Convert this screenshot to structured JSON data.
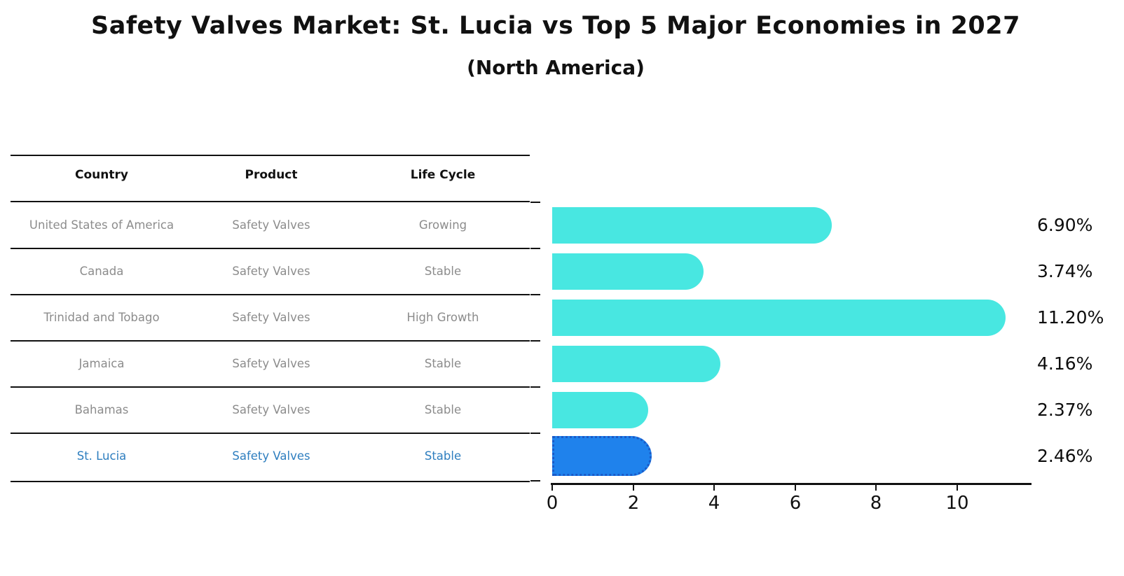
{
  "title": "Safety Valves Market: St. Lucia vs Top 5 Major Economies in 2027",
  "subtitle": "(North America)",
  "table": {
    "headers": [
      "Country",
      "Product",
      "Life Cycle"
    ],
    "rows": [
      {
        "country": "United States of America",
        "product": "Safety Valves",
        "life_cycle": "Growing"
      },
      {
        "country": "Canada",
        "product": "Safety Valves",
        "life_cycle": "Stable"
      },
      {
        "country": "Trinidad and Tobago",
        "product": "Safety Valves",
        "life_cycle": "High Growth"
      },
      {
        "country": "Jamaica",
        "product": "Safety Valves",
        "life_cycle": "Stable"
      },
      {
        "country": "Bahamas",
        "product": "Safety Valves",
        "life_cycle": "Stable"
      },
      {
        "country": "St. Lucia",
        "product": "Safety Valves",
        "life_cycle": "Stable"
      }
    ]
  },
  "chart_data": {
    "type": "bar",
    "orientation": "horizontal",
    "title": "Safety Valves Market: St. Lucia vs Top 5 Major Economies in 2027 (North America)",
    "categories": [
      "United States of America",
      "Canada",
      "Trinidad and Tobago",
      "Jamaica",
      "Bahamas",
      "St. Lucia"
    ],
    "values": [
      6.9,
      3.74,
      11.2,
      4.16,
      2.37,
      2.46
    ],
    "value_labels": [
      "6.90%",
      "3.74%",
      "11.20%",
      "4.16%",
      "2.37%",
      "2.46%"
    ],
    "x_ticks": [
      "0",
      "2",
      "4",
      "6",
      "8",
      "10"
    ],
    "xlim": [
      0,
      11.8
    ],
    "highlight_index": 5,
    "legend": "none",
    "grid": "off",
    "colors": {
      "bar": "#48e7e1",
      "highlight_bar": "#1f82ec",
      "highlight_bar_border": "#1a5ac8",
      "highlight_text": "#2e7ebf",
      "row_text": "#8c8c8c",
      "header_text": "#111111"
    }
  }
}
